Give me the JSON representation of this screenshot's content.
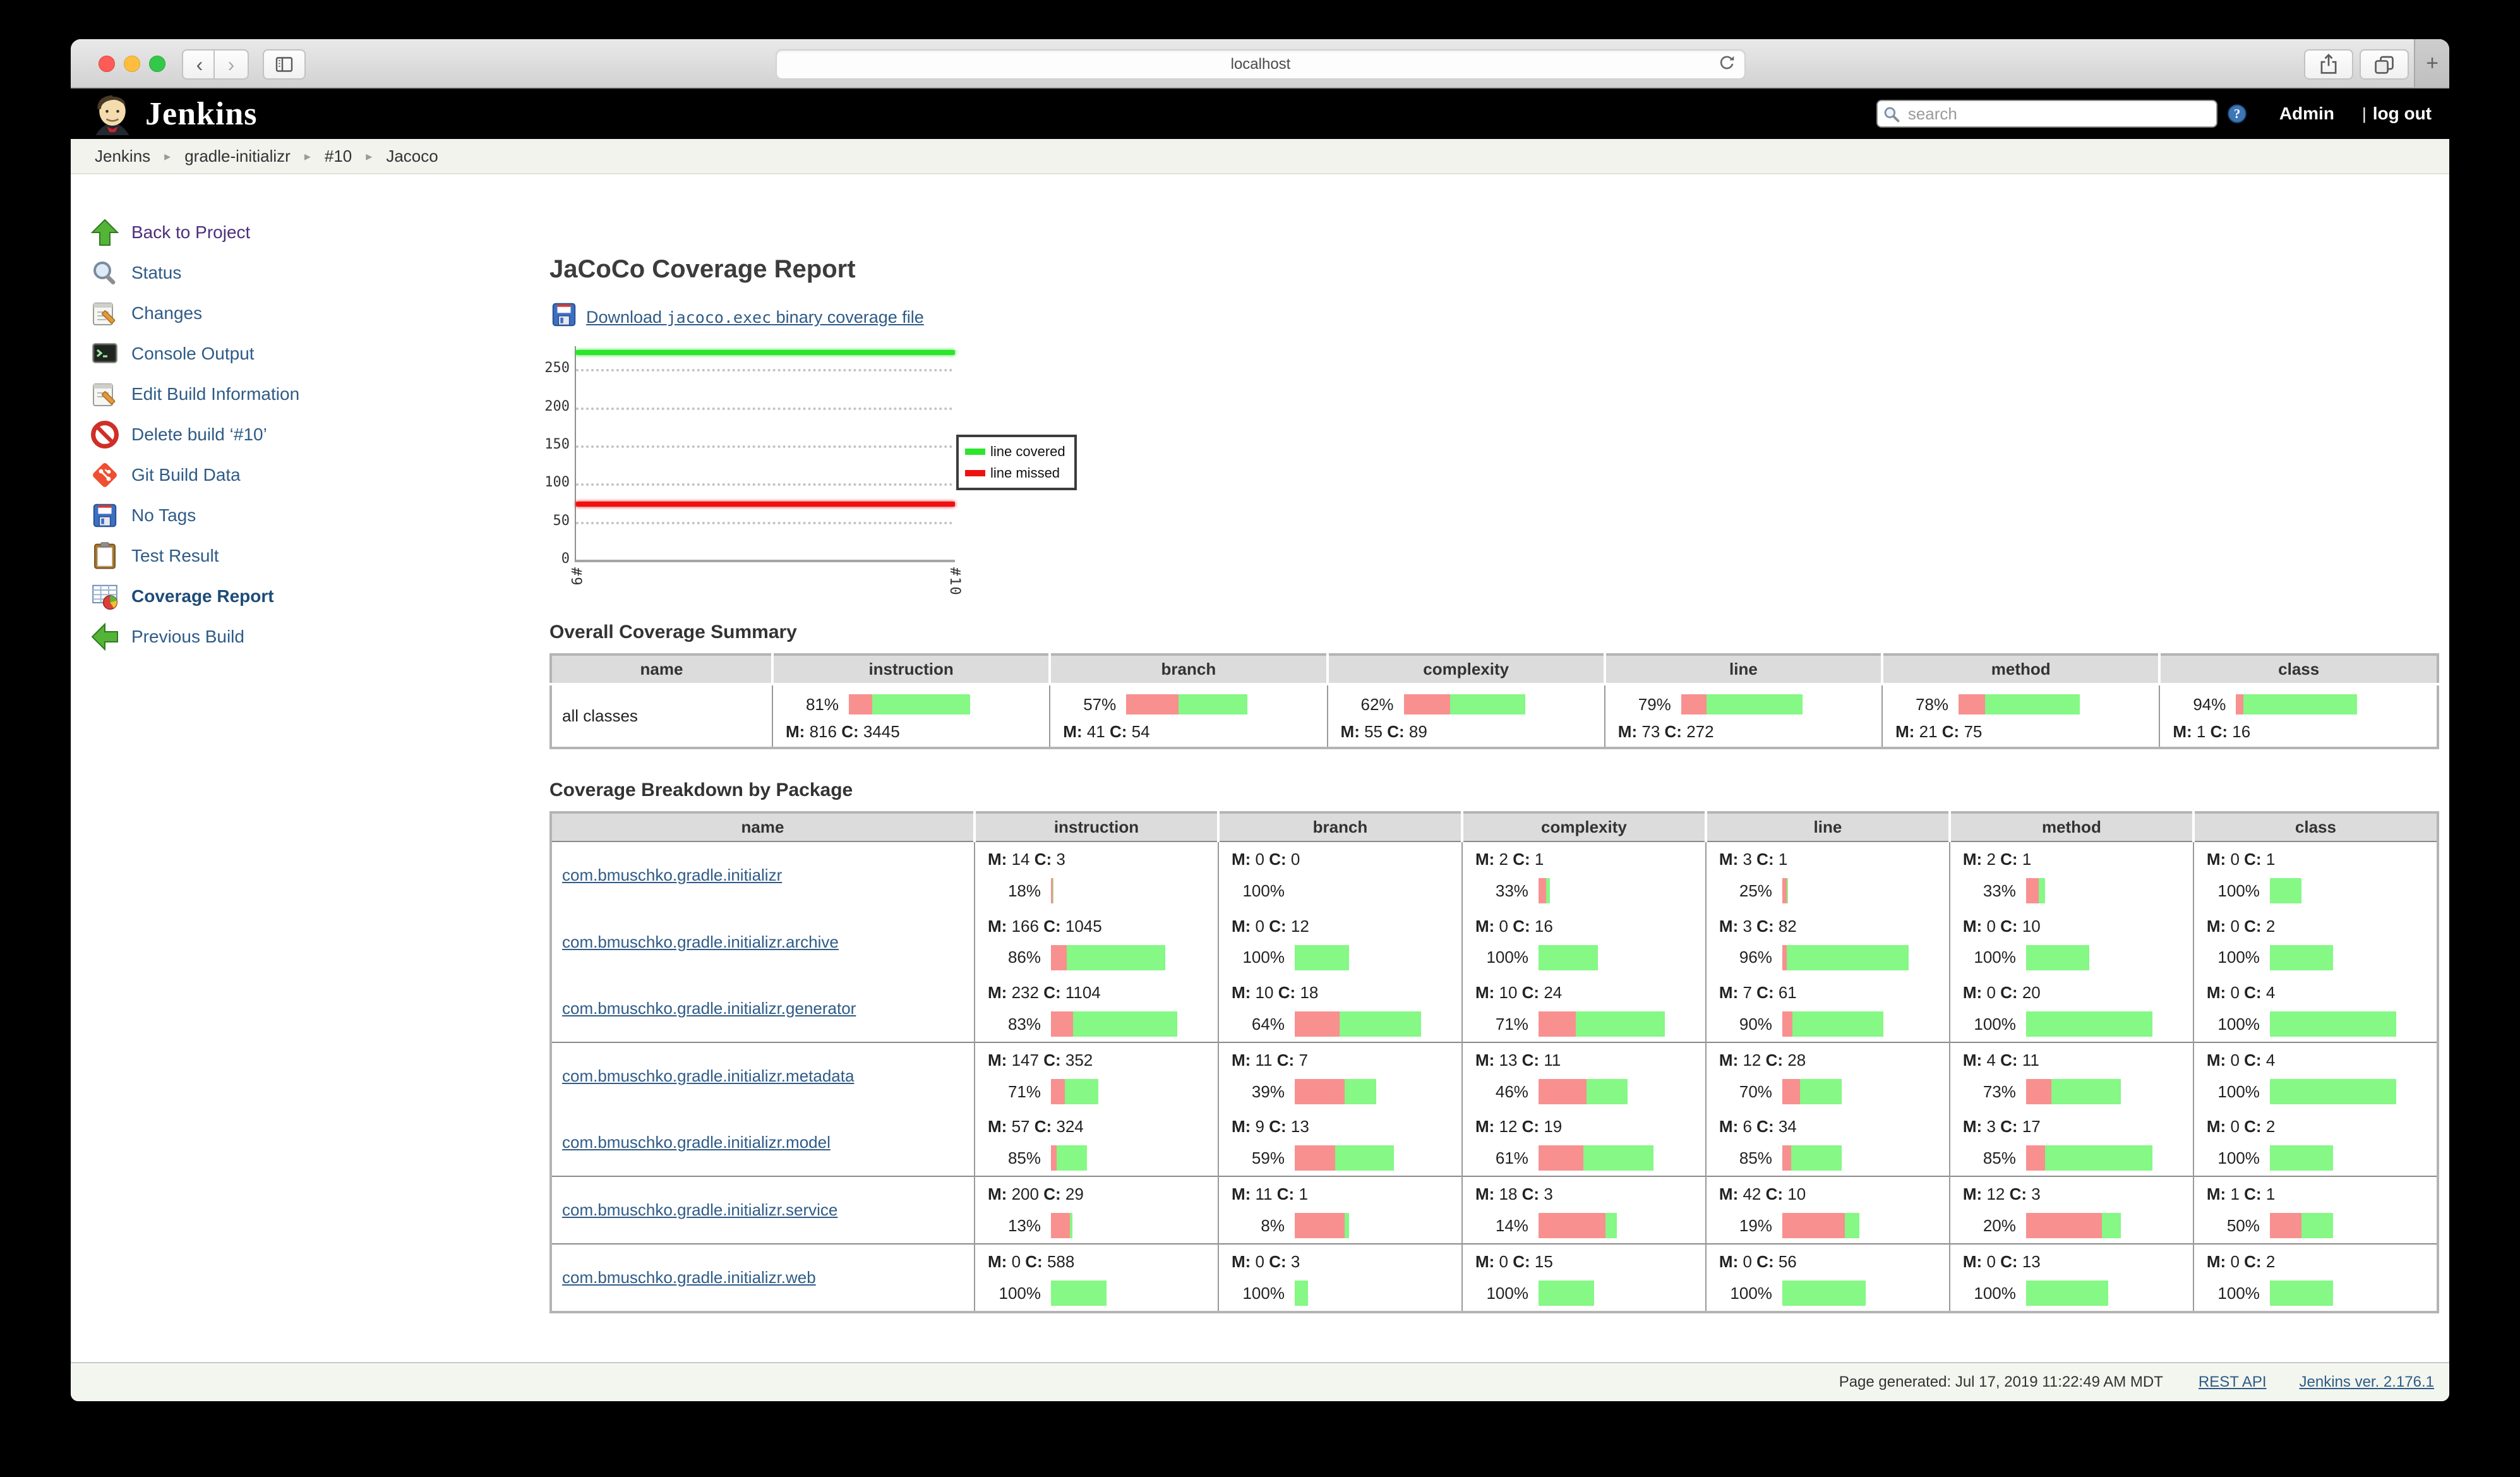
{
  "browser": {
    "url": "localhost",
    "window_controls": [
      "close",
      "minimize",
      "zoom"
    ]
  },
  "header": {
    "brand": "Jenkins",
    "search_placeholder": "search",
    "user": "Admin",
    "divider": "|",
    "logout_label": "log out"
  },
  "breadcrumb": [
    "Jenkins",
    "gradle-initializr",
    "#10",
    "Jacoco"
  ],
  "sidebar": {
    "items": [
      {
        "icon": "up-arrow-icon",
        "label": "Back to Project",
        "color": "#4c2f7c"
      },
      {
        "icon": "search-icon",
        "label": "Status"
      },
      {
        "icon": "notepad-icon",
        "label": "Changes"
      },
      {
        "icon": "terminal-icon",
        "label": "Console Output"
      },
      {
        "icon": "edit-icon",
        "label": "Edit Build Information"
      },
      {
        "icon": "no-entry-icon",
        "label": "Delete build ‘#10’"
      },
      {
        "icon": "git-icon",
        "label": "Git Build Data"
      },
      {
        "icon": "floppy-icon",
        "label": "No Tags"
      },
      {
        "icon": "clipboard-icon",
        "label": "Test Result"
      },
      {
        "icon": "coverage-icon",
        "label": "Coverage Report",
        "bold": true
      },
      {
        "icon": "left-arrow-icon",
        "label": "Previous Build"
      }
    ]
  },
  "labels": {
    "m": "M:",
    "c": "C:"
  },
  "main": {
    "title": "JaCoCo Coverage Report",
    "download": {
      "icon": "floppy-icon",
      "prefix": "Download ",
      "file": "jacoco.exec",
      "suffix": " binary coverage file"
    },
    "chart_data": {
      "type": "line",
      "x": [
        "#9",
        "#10"
      ],
      "series": [
        {
          "name": "line covered",
          "color": "#2ce52c",
          "values": [
            272,
            272
          ]
        },
        {
          "name": "line missed",
          "color": "#ee1111",
          "values": [
            73,
            73
          ]
        }
      ],
      "ylim": [
        0,
        280
      ],
      "yticks": [
        0,
        50,
        100,
        150,
        200,
        250
      ],
      "grid": "dotted-horizontal",
      "legend_position": "right-middle"
    },
    "summary": {
      "heading": "Overall Coverage Summary",
      "columns": [
        "name",
        "instruction",
        "branch",
        "complexity",
        "line",
        "method",
        "class"
      ],
      "row_name": "all classes",
      "metrics": [
        {
          "pct": 81,
          "m": 816,
          "c": 3445
        },
        {
          "pct": 57,
          "m": 41,
          "c": 54
        },
        {
          "pct": 62,
          "m": 55,
          "c": 89
        },
        {
          "pct": 79,
          "m": 73,
          "c": 272
        },
        {
          "pct": 78,
          "m": 21,
          "c": 75
        },
        {
          "pct": 94,
          "m": 1,
          "c": 16
        }
      ]
    },
    "breakdown": {
      "heading": "Coverage Breakdown by Package",
      "columns": [
        "name",
        "instruction",
        "branch",
        "complexity",
        "line",
        "method",
        "class"
      ],
      "rows": [
        {
          "name": "com.bmuschko.gradle.initializr",
          "metrics": [
            {
              "pct": 18,
              "m": 14,
              "c": 3
            },
            {
              "pct": 100,
              "m": 0,
              "c": 0
            },
            {
              "pct": 33,
              "m": 2,
              "c": 1
            },
            {
              "pct": 25,
              "m": 3,
              "c": 1
            },
            {
              "pct": 33,
              "m": 2,
              "c": 1
            },
            {
              "pct": 100,
              "m": 0,
              "c": 1
            }
          ]
        },
        {
          "name": "com.bmuschko.gradle.initializr.archive",
          "metrics": [
            {
              "pct": 86,
              "m": 166,
              "c": 1045
            },
            {
              "pct": 100,
              "m": 0,
              "c": 12
            },
            {
              "pct": 100,
              "m": 0,
              "c": 16
            },
            {
              "pct": 96,
              "m": 3,
              "c": 82
            },
            {
              "pct": 100,
              "m": 0,
              "c": 10
            },
            {
              "pct": 100,
              "m": 0,
              "c": 2
            }
          ]
        },
        {
          "name": "com.bmuschko.gradle.initializr.generator",
          "metrics": [
            {
              "pct": 83,
              "m": 232,
              "c": 1104
            },
            {
              "pct": 64,
              "m": 10,
              "c": 18
            },
            {
              "pct": 71,
              "m": 10,
              "c": 24
            },
            {
              "pct": 90,
              "m": 7,
              "c": 61
            },
            {
              "pct": 100,
              "m": 0,
              "c": 20
            },
            {
              "pct": 100,
              "m": 0,
              "c": 4
            }
          ]
        },
        {
          "name": "com.bmuschko.gradle.initializr.metadata",
          "rule_above": true,
          "metrics": [
            {
              "pct": 71,
              "m": 147,
              "c": 352
            },
            {
              "pct": 39,
              "m": 11,
              "c": 7
            },
            {
              "pct": 46,
              "m": 13,
              "c": 11
            },
            {
              "pct": 70,
              "m": 12,
              "c": 28
            },
            {
              "pct": 73,
              "m": 4,
              "c": 11
            },
            {
              "pct": 100,
              "m": 0,
              "c": 4
            }
          ]
        },
        {
          "name": "com.bmuschko.gradle.initializr.model",
          "metrics": [
            {
              "pct": 85,
              "m": 57,
              "c": 324
            },
            {
              "pct": 59,
              "m": 9,
              "c": 13
            },
            {
              "pct": 61,
              "m": 12,
              "c": 19
            },
            {
              "pct": 85,
              "m": 6,
              "c": 34
            },
            {
              "pct": 85,
              "m": 3,
              "c": 17
            },
            {
              "pct": 100,
              "m": 0,
              "c": 2
            }
          ]
        },
        {
          "name": "com.bmuschko.gradle.initializr.service",
          "rule_above": true,
          "metrics": [
            {
              "pct": 13,
              "m": 200,
              "c": 29
            },
            {
              "pct": 8,
              "m": 11,
              "c": 1
            },
            {
              "pct": 14,
              "m": 18,
              "c": 3
            },
            {
              "pct": 19,
              "m": 42,
              "c": 10
            },
            {
              "pct": 20,
              "m": 12,
              "c": 3
            },
            {
              "pct": 50,
              "m": 1,
              "c": 1
            }
          ]
        },
        {
          "name": "com.bmuschko.gradle.initializr.web",
          "rule_above": true,
          "metrics": [
            {
              "pct": 100,
              "m": 0,
              "c": 588
            },
            {
              "pct": 100,
              "m": 0,
              "c": 3
            },
            {
              "pct": 100,
              "m": 0,
              "c": 15
            },
            {
              "pct": 100,
              "m": 0,
              "c": 56
            },
            {
              "pct": 100,
              "m": 0,
              "c": 13
            },
            {
              "pct": 100,
              "m": 0,
              "c": 2
            }
          ]
        }
      ]
    }
  },
  "footer": {
    "generated": "Page generated: Jul 17, 2019 11:22:49 AM MDT",
    "links": [
      "REST API",
      "Jenkins ver. 2.176.1"
    ]
  },
  "colors": {
    "bar_missed": "#f89090",
    "bar_covered": "#85f885",
    "chart_covered": "#2ce52c",
    "chart_missed": "#ee1111",
    "link_blue": "#2f5b87",
    "visited_purple": "#4c2f7c",
    "header_bg": "#000000",
    "breadcrumb_bg": "#f1f3ec",
    "table_header_bg": "#dcdcdc",
    "footer_bg": "#f3f6ee"
  }
}
